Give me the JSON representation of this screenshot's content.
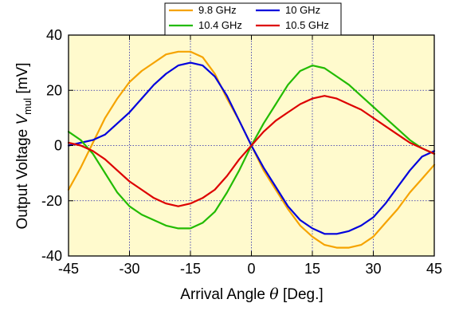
{
  "chart_data": {
    "type": "line",
    "title": "",
    "xlabel": {
      "prefix": "Arrival Angle ",
      "symbol": "θ",
      "suffix": " [Deg.]"
    },
    "ylabel": {
      "prefix": "Output Voltage ",
      "symbol": "V",
      "subscript": "mul",
      "suffix": " [mV]"
    },
    "xlim": [
      -45,
      45
    ],
    "ylim": [
      -40,
      40
    ],
    "xticks": [
      -45,
      -30,
      -15,
      0,
      15,
      30,
      45
    ],
    "yticks": [
      -40,
      -20,
      0,
      20,
      40
    ],
    "grid": true,
    "background_color": "#FFFACD",
    "legend_position": "top",
    "series": [
      {
        "name": "9.8 GHz",
        "color": "#F5A300",
        "x": [
          -45,
          -42,
          -39,
          -36,
          -33,
          -30,
          -27,
          -24,
          -21,
          -18,
          -15,
          -12,
          -9,
          -6,
          -3,
          0,
          3,
          6,
          9,
          12,
          15,
          18,
          21,
          24,
          27,
          30,
          33,
          36,
          39,
          42,
          45
        ],
        "y": [
          -16,
          -8,
          1,
          10,
          17,
          23,
          27,
          30,
          33,
          34,
          34,
          32,
          26,
          17,
          9,
          0,
          -9,
          -16,
          -23,
          -29,
          -33,
          -36,
          -37,
          -37,
          -36,
          -33,
          -28,
          -23,
          -17,
          -12,
          -7
        ]
      },
      {
        "name": "10 GHz",
        "color": "#0000DD",
        "x": [
          -45,
          -42,
          -39,
          -36,
          -33,
          -30,
          -27,
          -24,
          -21,
          -18,
          -15,
          -12,
          -9,
          -6,
          -3,
          0,
          3,
          6,
          9,
          12,
          15,
          18,
          21,
          24,
          27,
          30,
          33,
          36,
          39,
          42,
          45
        ],
        "y": [
          0,
          1,
          2,
          4,
          8,
          12,
          17,
          22,
          26,
          29,
          30,
          29,
          25,
          18,
          9,
          0,
          -8,
          -15,
          -22,
          -27,
          -30,
          -32,
          -32,
          -31,
          -29,
          -26,
          -21,
          -15,
          -9,
          -4,
          -2
        ]
      },
      {
        "name": "10.4 GHz",
        "color": "#22BB00",
        "x": [
          -45,
          -42,
          -39,
          -36,
          -33,
          -30,
          -27,
          -24,
          -21,
          -18,
          -15,
          -12,
          -9,
          -6,
          -3,
          0,
          3,
          6,
          9,
          12,
          15,
          18,
          21,
          24,
          27,
          30,
          33,
          36,
          39,
          42,
          45
        ],
        "y": [
          5,
          2,
          -3,
          -10,
          -17,
          -22,
          -25,
          -27,
          -29,
          -30,
          -30,
          -28,
          -24,
          -17,
          -9,
          0,
          8,
          15,
          22,
          27,
          29,
          28,
          25,
          22,
          18,
          14,
          10,
          6,
          2,
          -1,
          -3
        ]
      },
      {
        "name": "10.5 GHz",
        "color": "#DD0000",
        "x": [
          -45,
          -42,
          -39,
          -36,
          -33,
          -30,
          -27,
          -24,
          -21,
          -18,
          -15,
          -12,
          -9,
          -6,
          -3,
          0,
          3,
          6,
          9,
          12,
          15,
          18,
          21,
          24,
          27,
          30,
          33,
          36,
          39,
          42,
          45
        ],
        "y": [
          1,
          0,
          -2,
          -5,
          -9,
          -13,
          -16,
          -19,
          -21,
          -22,
          -21,
          -19,
          -16,
          -11,
          -5,
          0,
          5,
          9,
          12,
          15,
          17,
          18,
          17,
          15,
          13,
          10,
          7,
          4,
          1,
          -1,
          -3
        ]
      }
    ]
  }
}
